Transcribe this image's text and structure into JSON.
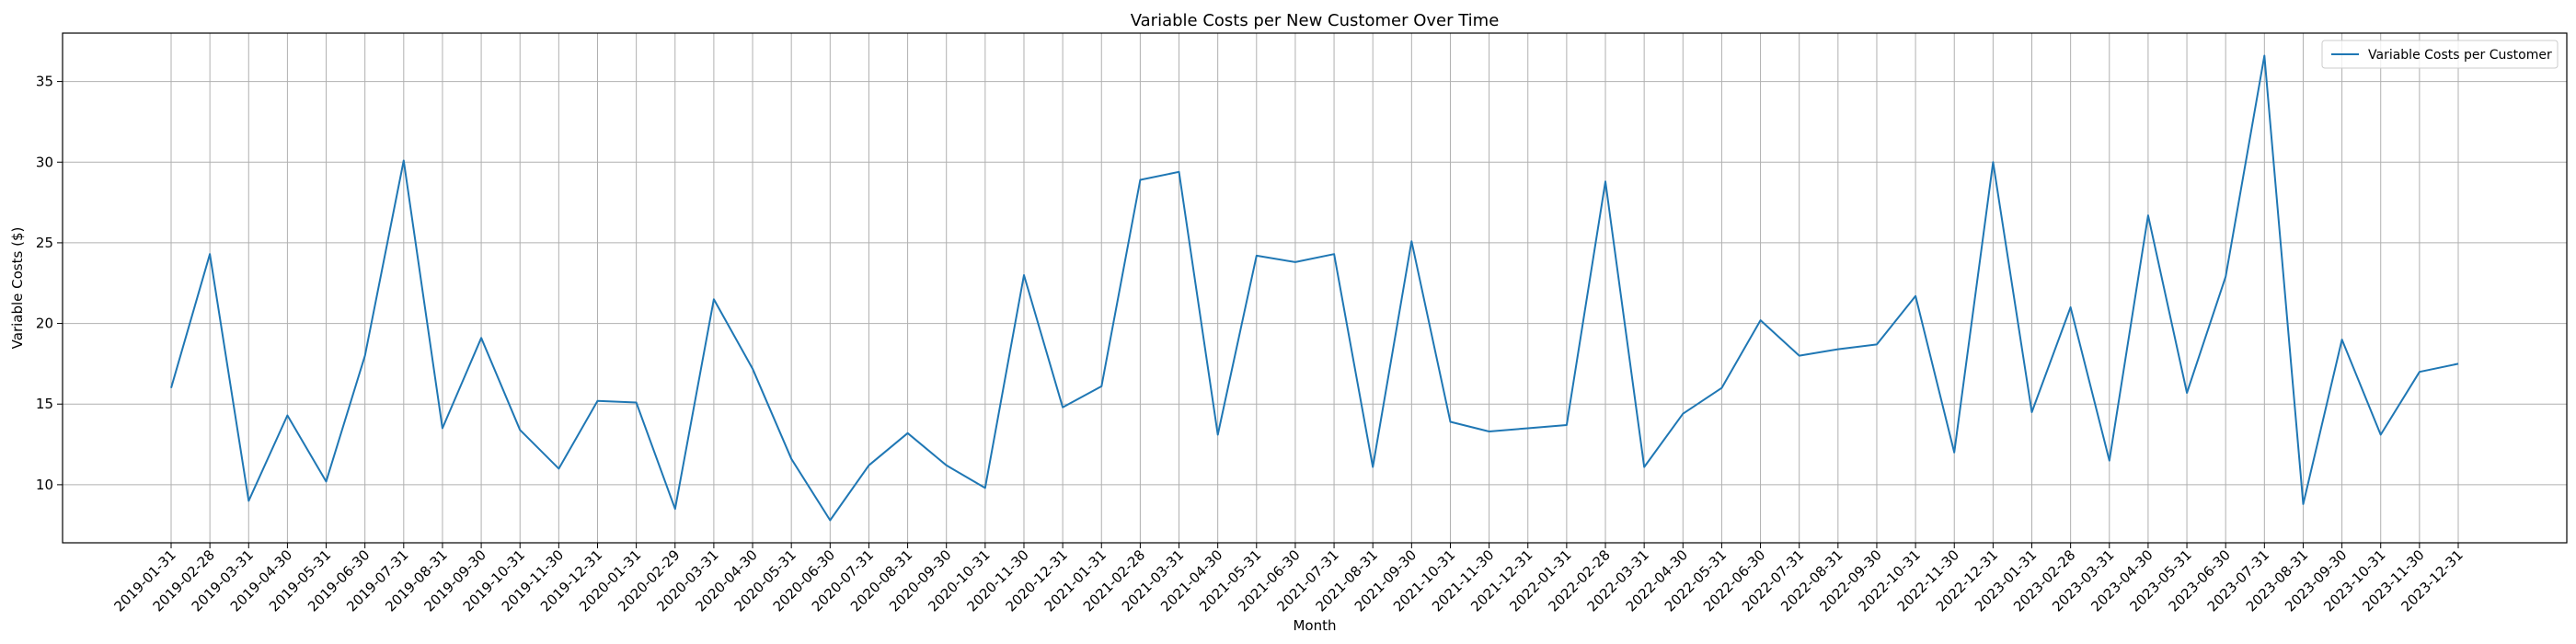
{
  "chart_data": {
    "type": "line",
    "title": "Variable Costs per New Customer Over Time",
    "xlabel": "Month",
    "ylabel": "Variable Costs ($)",
    "ylim": [
      6.4,
      38.0
    ],
    "yticks": [
      10,
      15,
      20,
      25,
      30,
      35
    ],
    "grid": true,
    "legend_position": "top-right",
    "line_color": "#1f77b4",
    "categories": [
      "2019-01-31",
      "2019-02-28",
      "2019-03-31",
      "2019-04-30",
      "2019-05-31",
      "2019-06-30",
      "2019-07-31",
      "2019-08-31",
      "2019-09-30",
      "2019-10-31",
      "2019-11-30",
      "2019-12-31",
      "2020-01-31",
      "2020-02-29",
      "2020-03-31",
      "2020-04-30",
      "2020-05-31",
      "2020-06-30",
      "2020-07-31",
      "2020-08-31",
      "2020-09-30",
      "2020-10-31",
      "2020-11-30",
      "2020-12-31",
      "2021-01-31",
      "2021-02-28",
      "2021-03-31",
      "2021-04-30",
      "2021-05-31",
      "2021-06-30",
      "2021-07-31",
      "2021-08-31",
      "2021-09-30",
      "2021-10-31",
      "2021-11-30",
      "2021-12-31",
      "2022-01-31",
      "2022-02-28",
      "2022-03-31",
      "2022-04-30",
      "2022-05-31",
      "2022-06-30",
      "2022-07-31",
      "2022-08-31",
      "2022-09-30",
      "2022-10-31",
      "2022-11-30",
      "2022-12-31",
      "2023-01-31",
      "2023-02-28",
      "2023-03-31",
      "2023-04-30",
      "2023-05-31",
      "2023-06-30",
      "2023-07-31",
      "2023-08-31",
      "2023-09-30",
      "2023-10-31",
      "2023-11-30",
      "2023-12-31"
    ],
    "series": [
      {
        "name": "Variable Costs per Customer",
        "values": [
          16.0,
          24.3,
          9.0,
          14.3,
          10.2,
          18.0,
          30.1,
          13.5,
          19.1,
          13.4,
          11.0,
          15.2,
          15.1,
          8.5,
          21.5,
          17.2,
          11.6,
          7.8,
          11.2,
          13.2,
          11.2,
          9.8,
          23.0,
          14.8,
          16.1,
          28.9,
          29.4,
          13.1,
          24.2,
          23.8,
          24.3,
          11.1,
          25.1,
          13.9,
          13.3,
          13.5,
          13.7,
          28.8,
          11.1,
          14.4,
          16.0,
          20.2,
          18.0,
          18.4,
          18.7,
          21.7,
          12.0,
          30.0,
          14.5,
          21.0,
          11.5,
          26.7,
          15.7,
          22.9,
          36.6,
          8.8,
          19.0,
          13.1,
          17.0,
          17.5
        ]
      }
    ]
  }
}
